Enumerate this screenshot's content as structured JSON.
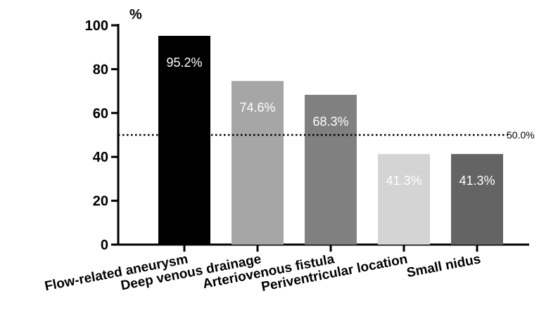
{
  "chart_data": {
    "type": "bar",
    "categories": [
      "Flow-related aneurysm",
      "Deep venous drainage",
      "Arteriovenous fistula",
      "Periventricular location",
      "Small nidus"
    ],
    "values": [
      95.2,
      74.6,
      68.3,
      41.3,
      41.3
    ],
    "data_labels": [
      "95.2%",
      "74.6%",
      "68.3%",
      "41.3%",
      "41.3%"
    ],
    "colors": [
      "#000000",
      "#a6a6a6",
      "#808080",
      "#d4d4d4",
      "#646464"
    ],
    "y_unit": "%",
    "ylim": [
      0,
      100
    ],
    "yticks": [
      0,
      20,
      40,
      60,
      80,
      100
    ],
    "reference_line": {
      "value": 50.0,
      "label": "50.0%",
      "style": "dotted"
    },
    "grid": false,
    "legend": "none"
  }
}
